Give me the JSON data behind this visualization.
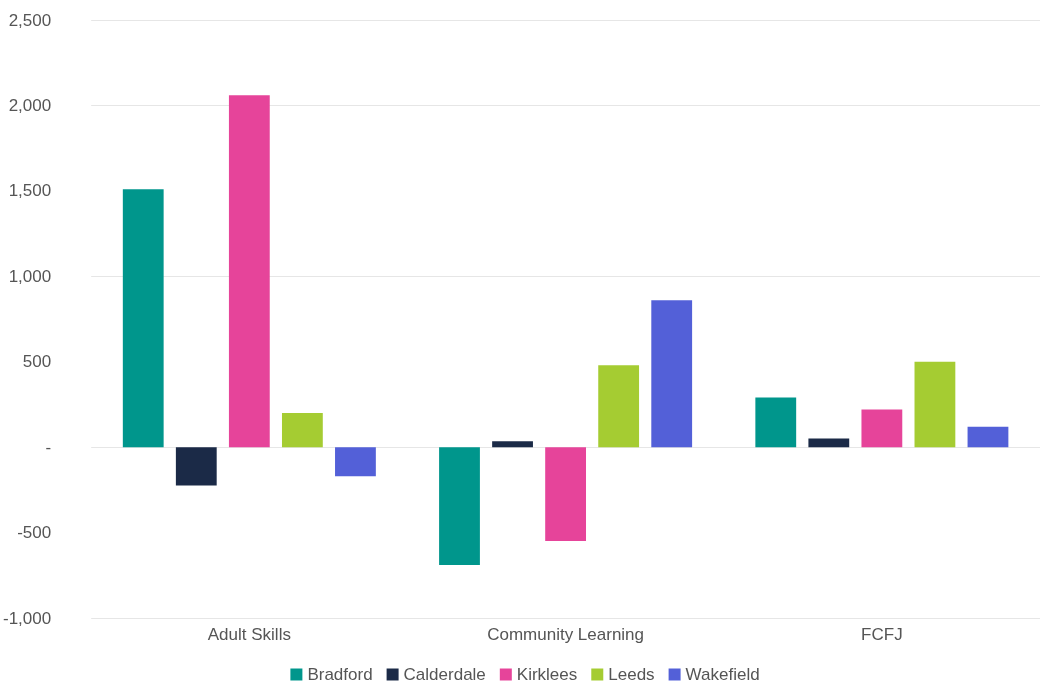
{
  "chart_data": {
    "type": "bar",
    "categories": [
      "Adult Skills",
      "Community Learning",
      "FCFJ"
    ],
    "series": [
      {
        "name": "Bradford",
        "color": "#00968c",
        "values": [
          1510,
          -690,
          290
        ]
      },
      {
        "name": "Calderdale",
        "color": "#1b2a47",
        "values": [
          -225,
          35,
          50
        ]
      },
      {
        "name": "Kirklees",
        "color": "#e6449a",
        "values": [
          2060,
          -550,
          220
        ]
      },
      {
        "name": "Leeds",
        "color": "#a5cc32",
        "values": [
          200,
          480,
          500
        ]
      },
      {
        "name": "Wakefield",
        "color": "#5360d8",
        "values": [
          -170,
          860,
          120
        ]
      }
    ],
    "ylim": [
      -1000,
      2500
    ],
    "yticks": [
      {
        "value": -1000,
        "label": "-1,000"
      },
      {
        "value": -500,
        "label": "-500"
      },
      {
        "value": 0,
        "label": "-"
      },
      {
        "value": 500,
        "label": "500"
      },
      {
        "value": 1000,
        "label": "1,000"
      },
      {
        "value": 1500,
        "label": "1,500"
      },
      {
        "value": 2000,
        "label": "2,000"
      },
      {
        "value": 2500,
        "label": "2,500"
      }
    ],
    "grid": "y",
    "legend": "bottom"
  }
}
